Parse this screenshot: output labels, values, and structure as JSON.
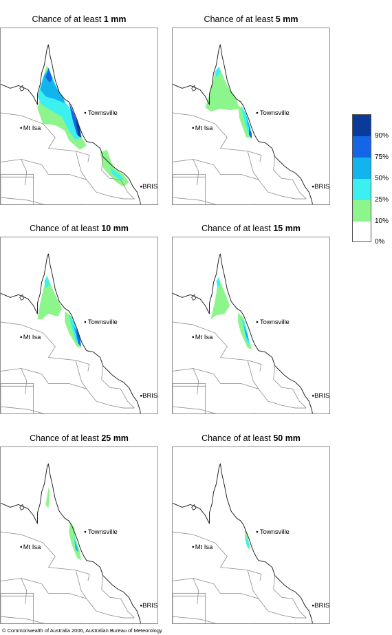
{
  "title_prefix": "Chance of at least",
  "panels": [
    {
      "id": "p1",
      "threshold": "1 mm"
    },
    {
      "id": "p5",
      "threshold": "5 mm"
    },
    {
      "id": "p10",
      "threshold": "10 mm"
    },
    {
      "id": "p15",
      "threshold": "15 mm"
    },
    {
      "id": "p25",
      "threshold": "25 mm"
    },
    {
      "id": "p50",
      "threshold": "50 mm"
    }
  ],
  "places": {
    "townsville": "Townsville",
    "mt_isa": "Mt Isa",
    "brisbane": "BRIS"
  },
  "legend": {
    "classes": [
      {
        "label": "90%",
        "color": "#0a3a9a"
      },
      {
        "label": "75%",
        "color": "#1466e6"
      },
      {
        "label": "50%",
        "color": "#12b4ee"
      },
      {
        "label": "25%",
        "color": "#3cf0f0"
      },
      {
        "label": "10%",
        "color": "#8cf58c"
      },
      {
        "label": "0%",
        "color": "#ffffff"
      }
    ]
  },
  "copyright": "© Commonwealth of Australia 2006, Australian Bureau of Meteorology"
}
